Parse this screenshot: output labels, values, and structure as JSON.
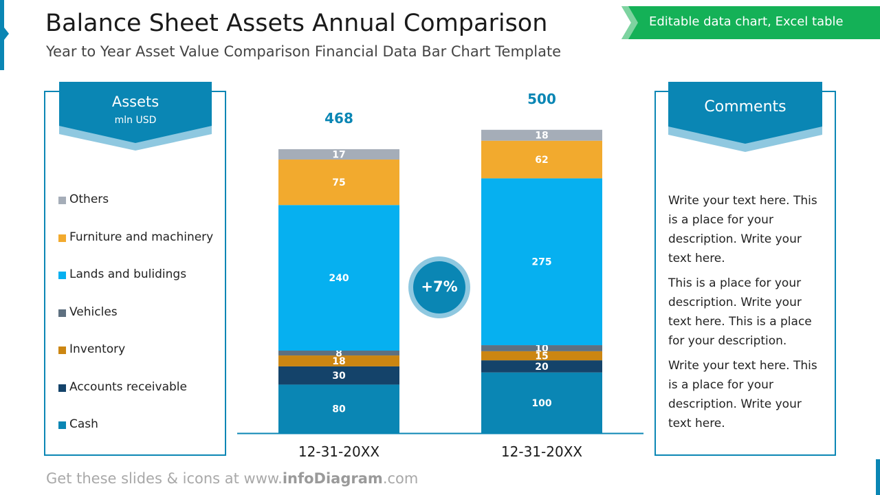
{
  "header": {
    "title": "Balance Sheet Assets Annual Comparison",
    "subtitle": "Year to Year Asset Value Comparison Financial Data Bar Chart Template",
    "badge": "Editable data chart, Excel table"
  },
  "assets_panel": {
    "title": "Assets",
    "unit": "mln USD"
  },
  "comments_panel": {
    "title": "Comments",
    "paragraphs": [
      "Write your text here. This is a place for your description. Write your text here.",
      "This is a place for your description. Write your text here. This is a place for your description.",
      "Write your text here. This is a place for your description. Write your text here."
    ]
  },
  "growth": {
    "label": "+7%"
  },
  "footer": {
    "prefix": "Get these slides & icons at www.",
    "brand": "infoDiagram",
    "suffix": ".com"
  },
  "colors": {
    "Others": "#a5adb8",
    "Furniture and machinery": "#f2aa2e",
    "Lands and bulidings": "#06b0f0",
    "Vehicles": "#5e7080",
    "Inventory": "#cc8612",
    "Accounts receivable": "#14436a",
    "Cash": "#0a86b4",
    "accent": "#0a86b4",
    "badge": "#14b157"
  },
  "chart_data": {
    "type": "bar",
    "stacked": true,
    "categories": [
      "12-31-20XX",
      "12-31-20XX"
    ],
    "totals": [
      468,
      500
    ],
    "series": [
      {
        "name": "Cash",
        "values": [
          80,
          100
        ]
      },
      {
        "name": "Accounts receivable",
        "values": [
          30,
          20
        ]
      },
      {
        "name": "Inventory",
        "values": [
          18,
          15
        ]
      },
      {
        "name": "Vehicles",
        "values": [
          8,
          10
        ]
      },
      {
        "name": "Lands and bulidings",
        "values": [
          240,
          275
        ]
      },
      {
        "name": "Furniture and machinery",
        "values": [
          75,
          62
        ]
      },
      {
        "name": "Others",
        "values": [
          17,
          18
        ]
      }
    ],
    "legend_order": [
      "Others",
      "Furniture and machinery",
      "Lands and bulidings",
      "Vehicles",
      "Inventory",
      "Accounts receivable",
      "Cash"
    ],
    "ylim": [
      0,
      500
    ],
    "unit": "mln USD",
    "legend": "left"
  }
}
